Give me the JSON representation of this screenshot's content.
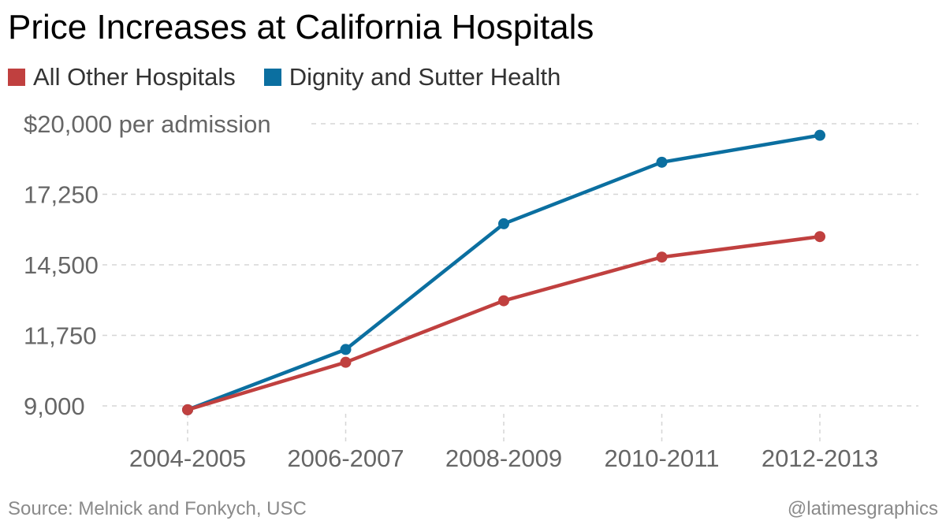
{
  "header": {
    "title": "Price Increases at California Hospitals"
  },
  "footer": {
    "source": "Source: Melnick and Fonkych, USC",
    "credit": "@latimesgraphics"
  },
  "chart_data": {
    "type": "line",
    "title": "Price Increases at California Hospitals",
    "x": [
      "2004-2005",
      "2006-2007",
      "2008-2009",
      "2010-2011",
      "2012-2013"
    ],
    "ylim": [
      9000,
      20000
    ],
    "y_ticks": [
      9000,
      11750,
      14500,
      17250,
      20000
    ],
    "y_tick_labels": [
      "9,000",
      "11,750",
      "14,500",
      "17,250",
      "$20,000 per admission"
    ],
    "grid": true,
    "legend_placement": "top-left",
    "series": [
      {
        "name": "All Other Hospitals",
        "color": "#c0403f",
        "values": [
          8850,
          10700,
          13100,
          14800,
          15600
        ]
      },
      {
        "name": "Dignity and Sutter Health",
        "color": "#0b6fa0",
        "values": [
          8850,
          11200,
          16100,
          18500,
          19550
        ]
      }
    ]
  }
}
